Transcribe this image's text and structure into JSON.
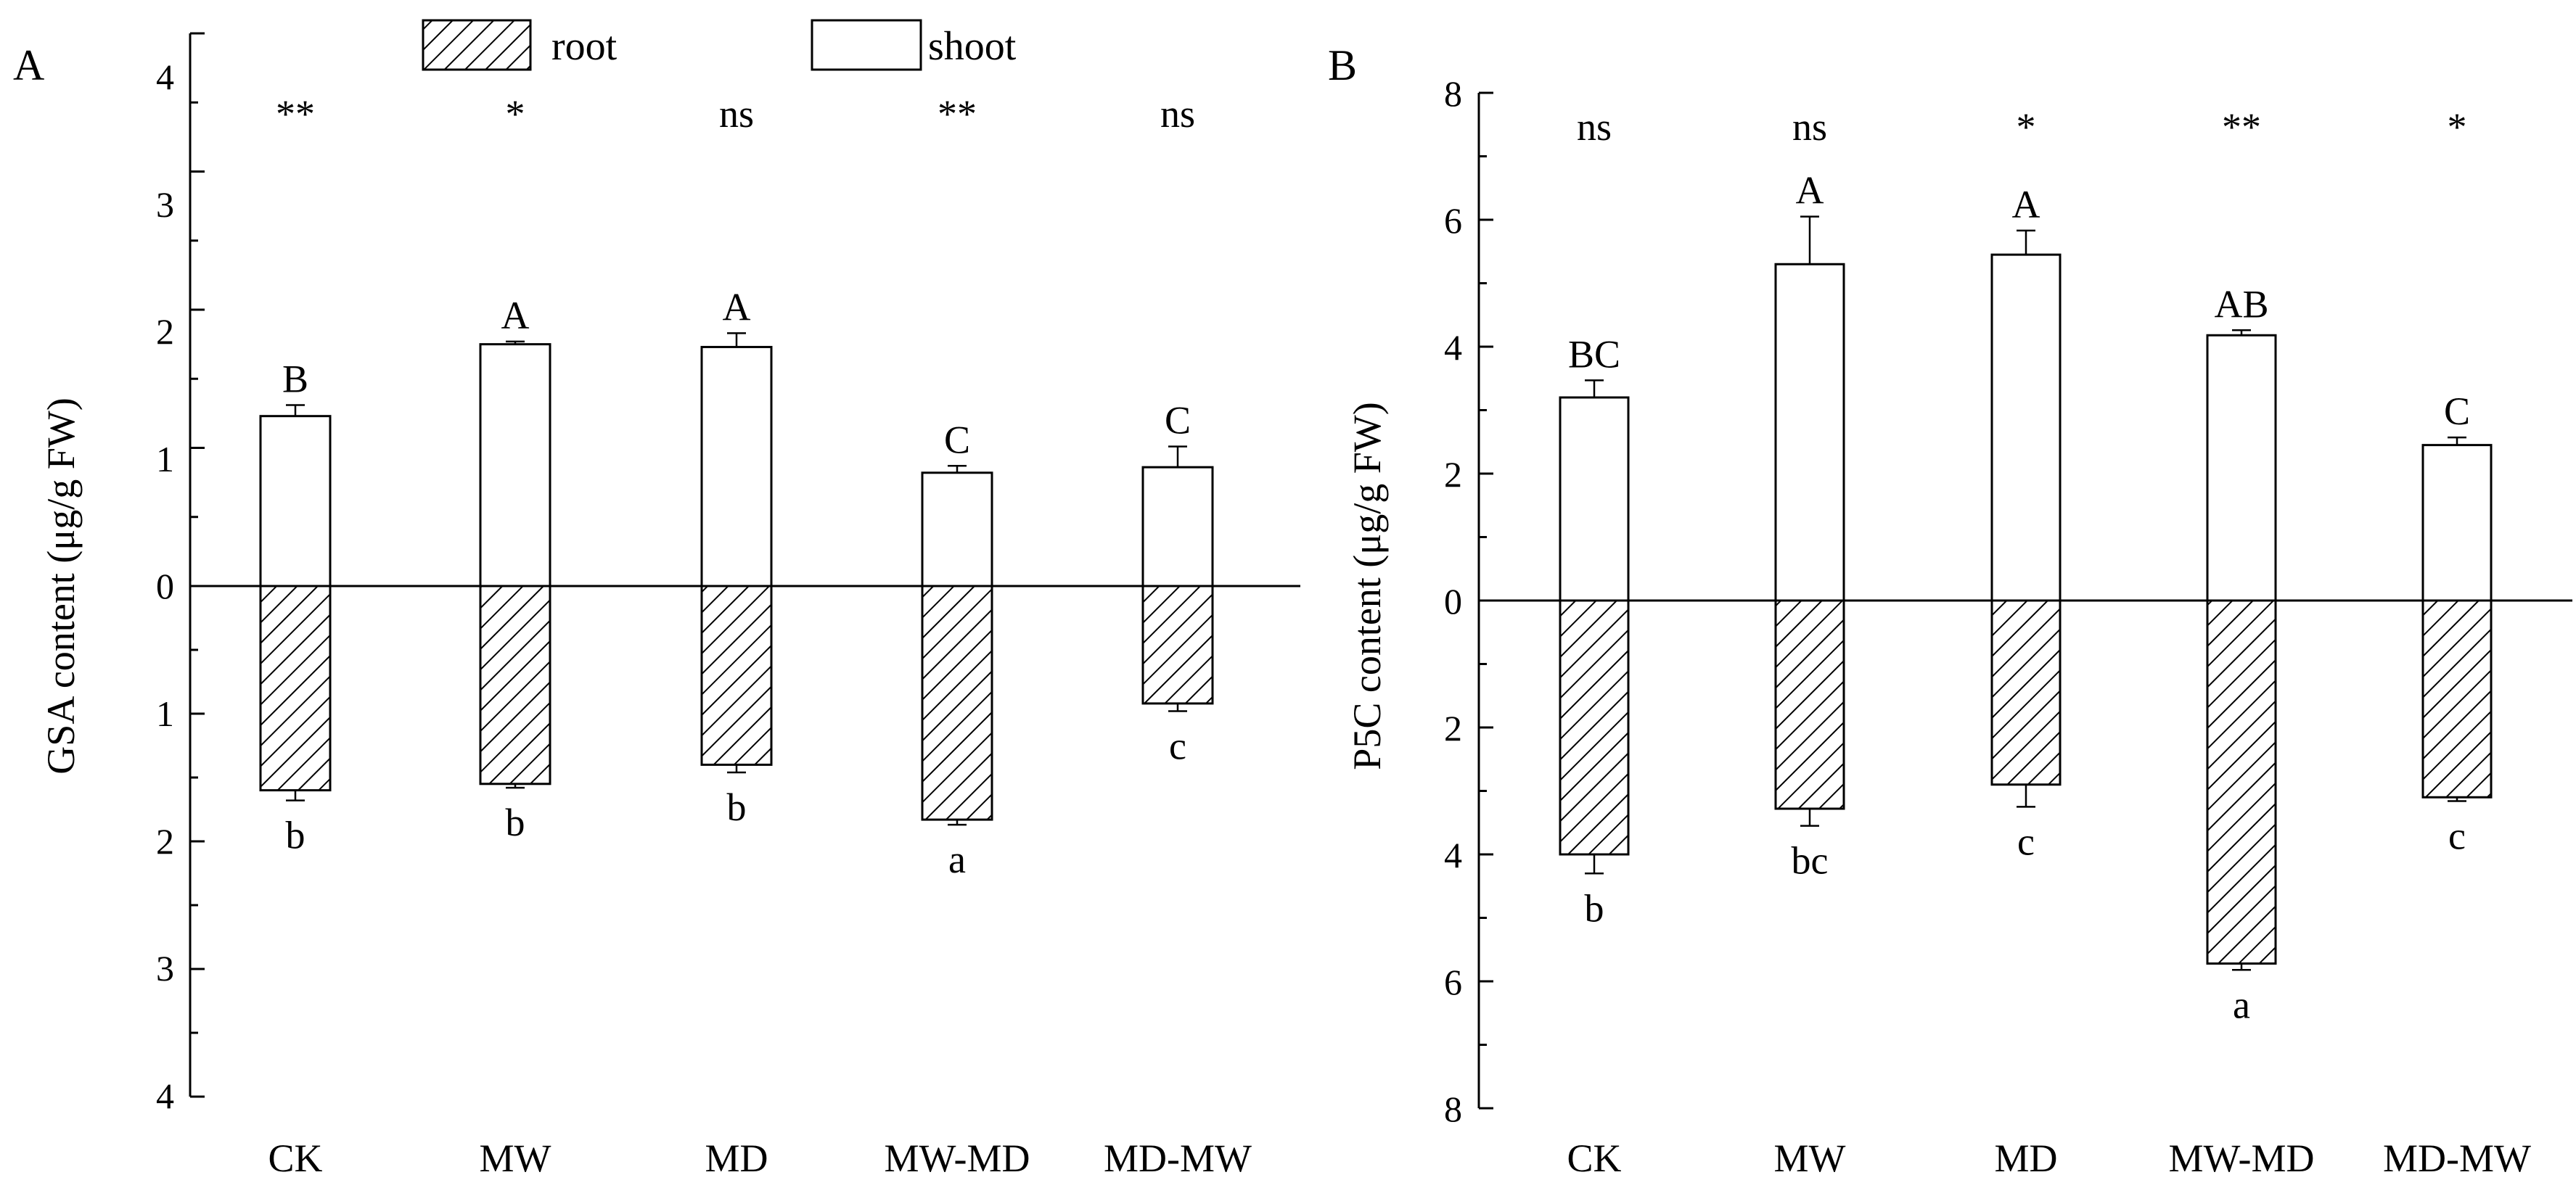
{
  "legend": {
    "root_label": "root",
    "shoot_label": "shoot"
  },
  "colors": {
    "bar_fill": "#ffffff",
    "stroke": "#000000",
    "hatch": "#000000"
  },
  "chart_data": [
    {
      "type": "bar",
      "panel_label": "A",
      "ylabel": "GSA content (μg/g  FW)",
      "categories": [
        "CK",
        "MW",
        "MD",
        "MW-MD",
        "MD-MW"
      ],
      "ylim_shoot": [
        0,
        4
      ],
      "ylim_root": [
        0,
        4
      ],
      "yticks_shoot": [
        "0",
        "1",
        "2",
        "3",
        "4"
      ],
      "yticks_root": [
        "1",
        "2",
        "3",
        "4"
      ],
      "significance": [
        "**",
        "*",
        "ns",
        "**",
        "ns"
      ],
      "series": [
        {
          "name": "shoot",
          "values": [
            1.23,
            1.75,
            1.73,
            0.82,
            0.86
          ],
          "errors": [
            0.08,
            0.02,
            0.1,
            0.05,
            0.15
          ],
          "letters": [
            "B",
            "A",
            "A",
            "C",
            "C"
          ]
        },
        {
          "name": "root",
          "values": [
            1.6,
            1.55,
            1.4,
            1.83,
            0.92
          ],
          "errors": [
            0.08,
            0.03,
            0.06,
            0.04,
            0.06
          ],
          "letters": [
            "b",
            "b",
            "b",
            "a",
            "c"
          ]
        }
      ]
    },
    {
      "type": "bar",
      "panel_label": "B",
      "ylabel": "P5C content (μg/g FW)",
      "categories": [
        "CK",
        "MW",
        "MD",
        "MW-MD",
        "MD-MW"
      ],
      "ylim_shoot": [
        0,
        8
      ],
      "ylim_root": [
        0,
        8
      ],
      "yticks_shoot": [
        "0",
        "2",
        "4",
        "6",
        "8"
      ],
      "yticks_root": [
        "2",
        "4",
        "6",
        "8"
      ],
      "significance": [
        "ns",
        "ns",
        "*",
        "**",
        "*"
      ],
      "series": [
        {
          "name": "shoot",
          "values": [
            3.2,
            5.3,
            5.45,
            4.18,
            2.45
          ],
          "errors": [
            0.27,
            0.75,
            0.38,
            0.08,
            0.12
          ],
          "letters": [
            "BC",
            "A",
            "A",
            "AB",
            "C"
          ]
        },
        {
          "name": "root",
          "values": [
            4.0,
            3.28,
            2.9,
            5.72,
            3.1
          ],
          "errors": [
            0.3,
            0.27,
            0.35,
            0.1,
            0.06
          ],
          "letters": [
            "b",
            "bc",
            "c",
            "a",
            "c"
          ]
        }
      ]
    }
  ]
}
